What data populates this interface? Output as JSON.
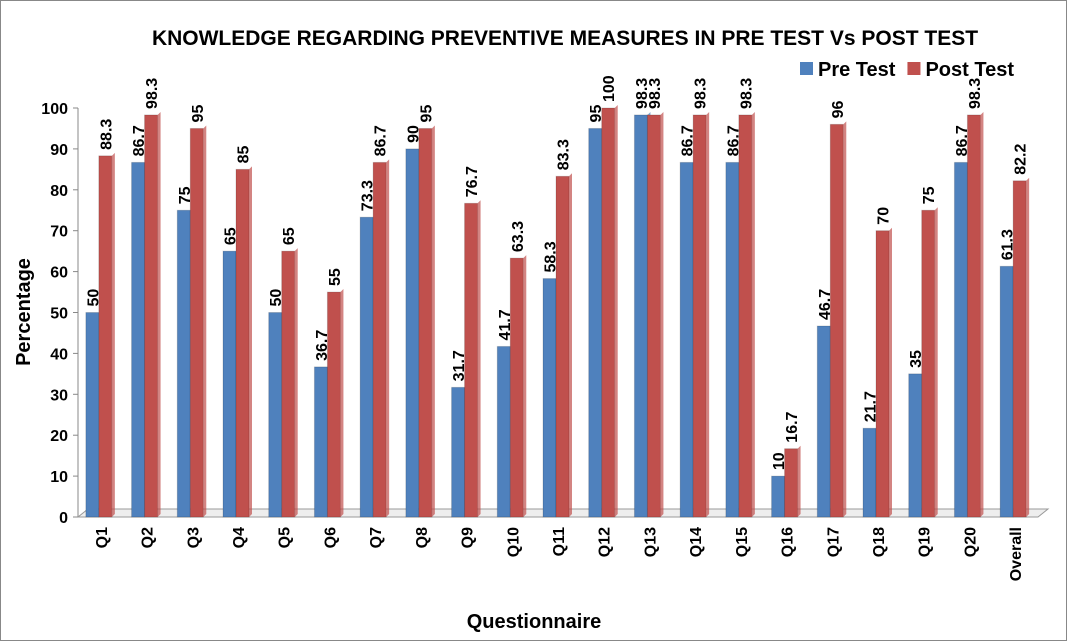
{
  "chart_data": {
    "type": "bar",
    "title": "KNOWLEDGE REGARDING PREVENTIVE MEASURES IN PRE TEST Vs POST TEST",
    "x_label": "Questionnaire",
    "y_label": "Percentage",
    "categories": [
      "Q1",
      "Q2",
      "Q3",
      "Q4",
      "Q5",
      "Q6",
      "Q7",
      "Q8",
      "Q9",
      "Q10",
      "Q11",
      "Q12",
      "Q13",
      "Q14",
      "Q15",
      "Q16",
      "Q17",
      "Q18",
      "Q19",
      "Q20",
      "Overall"
    ],
    "series": [
      {
        "name": "Pre Test",
        "color": "#4f81bd",
        "values": [
          50,
          86.7,
          75,
          65,
          50,
          36.7,
          73.3,
          90,
          31.7,
          41.7,
          58.3,
          95,
          98.3,
          86.7,
          86.7,
          10,
          46.7,
          21.7,
          35,
          86.7,
          61.3
        ]
      },
      {
        "name": "Post Test",
        "color": "#c0504d",
        "values": [
          88.3,
          98.3,
          95,
          85,
          65,
          55,
          86.7,
          95,
          76.7,
          63.3,
          83.3,
          100,
          98.3,
          98.3,
          98.3,
          16.7,
          96,
          70,
          75,
          98.3,
          82.2
        ]
      }
    ],
    "ylim": [
      0,
      100
    ],
    "yticks": [
      0,
      10,
      20,
      30,
      40,
      50,
      60,
      70,
      80,
      90,
      100
    ],
    "legend": "top-right"
  }
}
